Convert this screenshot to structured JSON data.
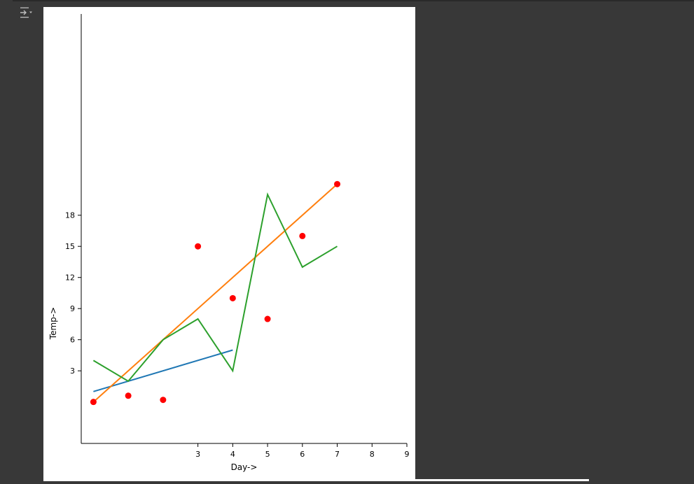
{
  "cell": {
    "output_icon": "output-options-icon"
  },
  "chart_data": {
    "type": "line",
    "xlabel": "Day->",
    "ylabel": "Temp->",
    "xlim": [
      -0.35,
      9.0
    ],
    "ylim": [
      -4.0,
      37.4
    ],
    "xticks": [
      3,
      4,
      5,
      6,
      7,
      8,
      9
    ],
    "yticks": [
      3,
      6,
      9,
      12,
      15,
      18
    ],
    "spines": {
      "top": false,
      "right": false,
      "left": true,
      "bottom": true
    },
    "grid": false,
    "series": [
      {
        "kind": "line",
        "color": "#1f77b4",
        "x": [
          0,
          4
        ],
        "y": [
          1,
          5
        ]
      },
      {
        "kind": "line",
        "color": "#ff7f0e",
        "x": [
          0,
          7
        ],
        "y": [
          0,
          21
        ]
      },
      {
        "kind": "line",
        "color": "#2ca02c",
        "x": [
          0,
          1,
          2,
          3,
          4,
          5,
          6,
          7
        ],
        "y": [
          4,
          2,
          6,
          8,
          3,
          20,
          13,
          15
        ]
      },
      {
        "kind": "scatter",
        "color": "#ff0000",
        "x": [
          0,
          1,
          2,
          3,
          4,
          5,
          6,
          7
        ],
        "y": [
          0,
          0.6,
          0.2,
          15,
          10,
          8,
          16,
          21
        ]
      }
    ]
  }
}
